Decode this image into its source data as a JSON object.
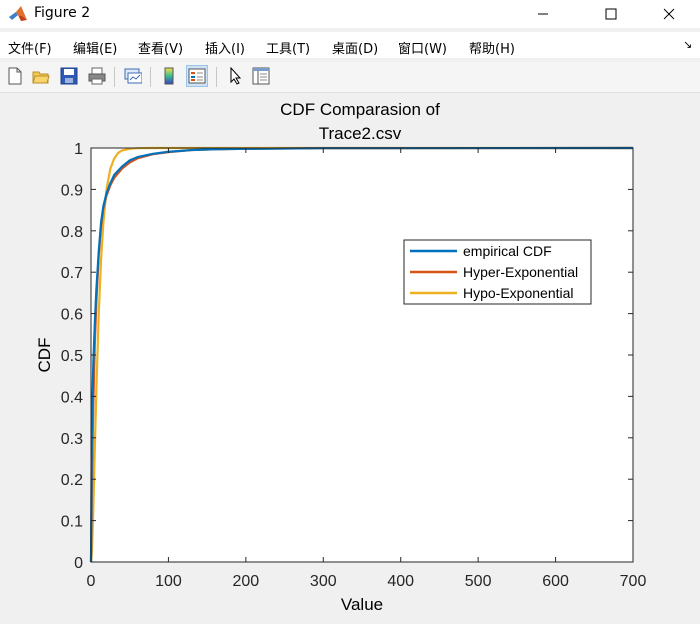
{
  "window": {
    "title": "Figure 2",
    "minimize_symbol": "—",
    "maximize_symbol": "☐",
    "close_symbol": "✕"
  },
  "menu": [
    {
      "label": "文件(F)"
    },
    {
      "label": "编辑(E)"
    },
    {
      "label": "查看(V)"
    },
    {
      "label": "插入(I)"
    },
    {
      "label": "工具(T)"
    },
    {
      "label": "桌面(D)"
    },
    {
      "label": "窗口(W)"
    },
    {
      "label": "帮助(H)"
    }
  ],
  "menu_overflow_symbol": "↘",
  "toolbar": [
    "new-figure-icon",
    "open-file-icon",
    "save-icon",
    "print-icon",
    "link-plot-icon",
    "colorbar-icon",
    "legend-icon",
    "pointer-icon",
    "property-inspector-icon"
  ],
  "chart_data": {
    "type": "line",
    "title_lines": [
      "CDF Comparasion of",
      "Trace2.csv"
    ],
    "xlabel": "Value",
    "ylabel": "CDF",
    "xlim": [
      0,
      700
    ],
    "ylim": [
      0,
      1
    ],
    "xticks": [
      "0",
      "100",
      "200",
      "300",
      "400",
      "500",
      "600",
      "700"
    ],
    "yticks": [
      "0",
      "0.1",
      "0.2",
      "0.3",
      "0.4",
      "0.5",
      "0.6",
      "0.7",
      "0.8",
      "0.9",
      "1"
    ],
    "legend_position": "inside-right",
    "series": [
      {
        "name": "empirical CDF",
        "color": "#0072BD",
        "x": [
          0,
          1,
          2,
          3,
          5,
          7,
          10,
          13,
          16,
          20,
          25,
          30,
          40,
          50,
          60,
          80,
          100,
          130,
          160,
          200,
          300,
          700
        ],
        "y": [
          0,
          0.3,
          0.4,
          0.48,
          0.58,
          0.66,
          0.75,
          0.82,
          0.86,
          0.89,
          0.915,
          0.935,
          0.955,
          0.97,
          0.978,
          0.986,
          0.991,
          0.995,
          0.997,
          0.998,
          0.9995,
          1
        ]
      },
      {
        "name": "Hyper-Exponential",
        "color": "#D95319",
        "x": [
          0,
          1,
          2,
          3,
          5,
          7,
          10,
          13,
          16,
          20,
          25,
          30,
          40,
          50,
          60,
          80,
          100,
          130,
          160,
          200,
          300,
          700
        ],
        "y": [
          0,
          0.15,
          0.28,
          0.38,
          0.53,
          0.63,
          0.74,
          0.81,
          0.855,
          0.885,
          0.91,
          0.928,
          0.95,
          0.965,
          0.975,
          0.985,
          0.99,
          0.995,
          0.997,
          0.998,
          0.9995,
          1
        ]
      },
      {
        "name": "Hypo-Exponential",
        "color": "#EDB120",
        "x": [
          0,
          1,
          2,
          3,
          5,
          7,
          10,
          13,
          16,
          20,
          25,
          30,
          35,
          40,
          50,
          60,
          80,
          100,
          700
        ],
        "y": [
          0,
          0.02,
          0.07,
          0.13,
          0.28,
          0.42,
          0.6,
          0.73,
          0.82,
          0.9,
          0.95,
          0.975,
          0.988,
          0.994,
          0.998,
          0.9995,
          1,
          1,
          1
        ]
      }
    ]
  }
}
